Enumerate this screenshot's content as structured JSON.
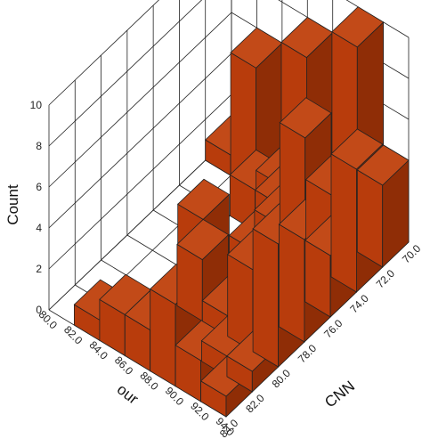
{
  "chart_data": {
    "type": "bar",
    "subtype": "3d-histogram",
    "zlabel": "Count",
    "xlabel": "our",
    "ylabel": "CNN",
    "z_ticks": [
      "0",
      "2",
      "4",
      "6",
      "8",
      "10"
    ],
    "zlim": [
      0,
      10
    ],
    "x_ticks": [
      "80.0",
      "82.0",
      "84.0",
      "86.0",
      "88.0",
      "90.0",
      "92.0",
      "94.0"
    ],
    "y_ticks": [
      "84.0",
      "82.0",
      "80.0",
      "78.0",
      "76.0",
      "74.0",
      "72.0",
      "70.0"
    ],
    "grid": true,
    "bar_color": "#b53a0a",
    "bars": [
      {
        "our": 81,
        "cnn": 71,
        "count": 1
      },
      {
        "our": 83,
        "cnn": 71,
        "count": 6
      },
      {
        "our": 85,
        "cnn": 71,
        "count": 1
      },
      {
        "our": 87,
        "cnn": 71,
        "count": 8
      },
      {
        "our": 89,
        "cnn": 71,
        "count": 1
      },
      {
        "our": 91,
        "cnn": 71,
        "count": 10
      },
      {
        "our": 93,
        "cnn": 71,
        "count": 4
      },
      {
        "our": 93,
        "cnn": 73,
        "count": 6
      },
      {
        "our": 85,
        "cnn": 73,
        "count": 2
      },
      {
        "our": 87,
        "cnn": 73,
        "count": 2
      },
      {
        "our": 89,
        "cnn": 73,
        "count": 4
      },
      {
        "our": 91,
        "cnn": 73,
        "count": 4
      },
      {
        "our": 87,
        "cnn": 75,
        "count": 1
      },
      {
        "our": 89,
        "cnn": 75,
        "count": 3
      },
      {
        "our": 91,
        "cnn": 75,
        "count": 8
      },
      {
        "our": 93,
        "cnn": 75,
        "count": 3
      },
      {
        "our": 89,
        "cnn": 77,
        "count": 2
      },
      {
        "our": 91,
        "cnn": 77,
        "count": 3
      },
      {
        "our": 93,
        "cnn": 77,
        "count": 5
      },
      {
        "our": 89,
        "cnn": 79,
        "count": 1
      },
      {
        "our": 91,
        "cnn": 79,
        "count": 4
      },
      {
        "our": 93,
        "cnn": 79,
        "count": 6
      },
      {
        "our": 91,
        "cnn": 81,
        "count": 1
      },
      {
        "our": 93,
        "cnn": 81,
        "count": 1
      },
      {
        "our": 89,
        "cnn": 71,
        "count": 1
      },
      {
        "our": 87,
        "cnn": 79,
        "count": 3
      },
      {
        "our": 87,
        "cnn": 81,
        "count": 1
      },
      {
        "our": 85,
        "cnn": 77,
        "count": 3
      },
      {
        "our": 83,
        "cnn": 83,
        "count": 1
      },
      {
        "our": 85,
        "cnn": 83,
        "count": 2
      },
      {
        "our": 87,
        "cnn": 83,
        "count": 2
      },
      {
        "our": 89,
        "cnn": 83,
        "count": 4
      },
      {
        "our": 91,
        "cnn": 83,
        "count": 2
      },
      {
        "our": 93,
        "cnn": 83,
        "count": 1
      }
    ]
  }
}
